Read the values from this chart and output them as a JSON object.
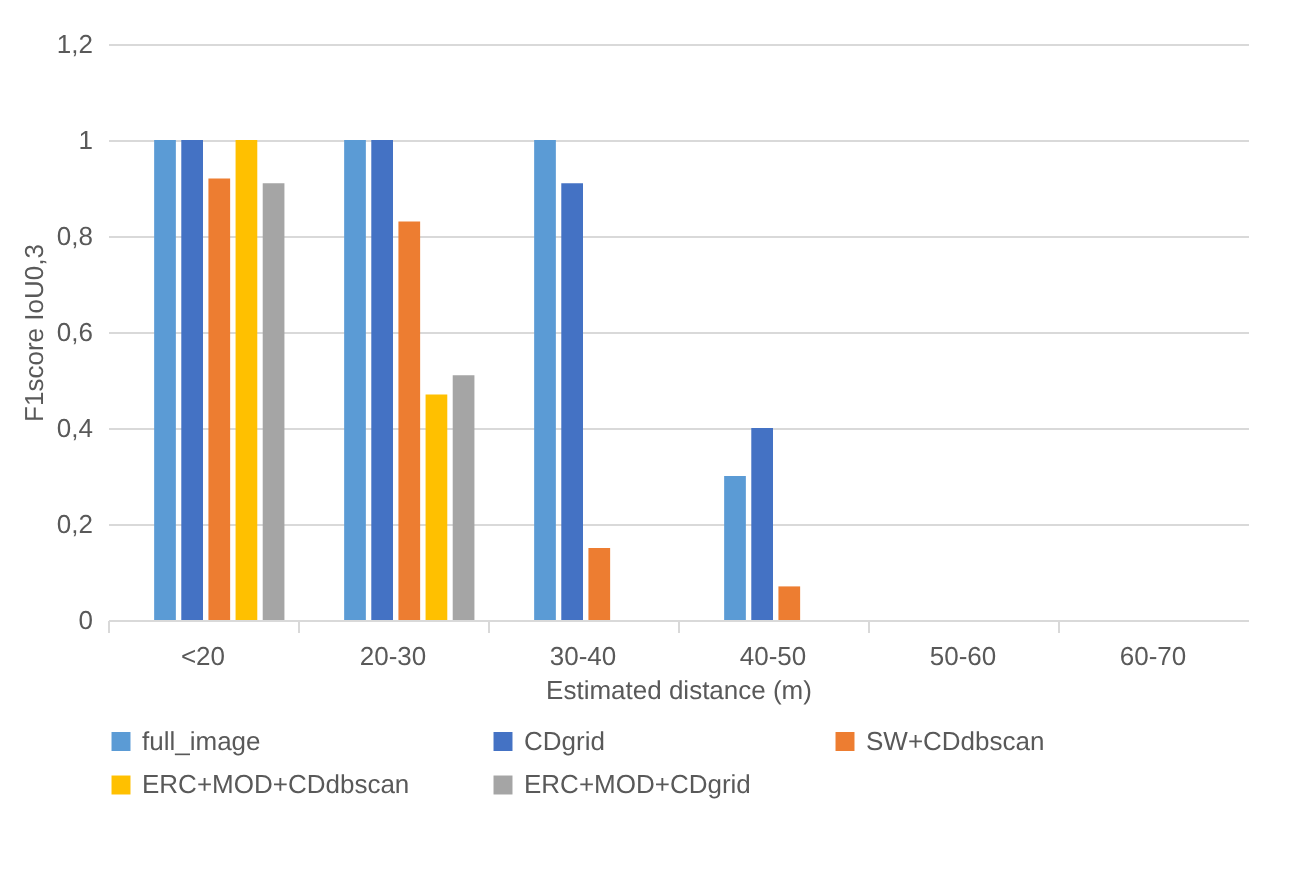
{
  "chart_data": {
    "type": "bar",
    "xlabel": "Estimated distance (m)",
    "ylabel": "F1score IoU0,3",
    "categories": [
      "<20",
      "20-30",
      "30-40",
      "40-50",
      "50-60",
      "60-70"
    ],
    "series": [
      {
        "name": "full_image",
        "color": "#5b9bd5",
        "values": [
          1,
          1,
          1,
          0.3,
          0,
          0
        ]
      },
      {
        "name": "CDgrid",
        "color": "#4472c4",
        "values": [
          1,
          1,
          0.91,
          0.4,
          0,
          0
        ]
      },
      {
        "name": "SW+CDdbscan",
        "color": "#ed7d31",
        "values": [
          0.92,
          0.83,
          0.15,
          0.07,
          0,
          0
        ]
      },
      {
        "name": "ERC+MOD+CDdbscan",
        "color": "#ffc000",
        "values": [
          1,
          0.47,
          0,
          0,
          0,
          0
        ]
      },
      {
        "name": "ERC+MOD+CDgrid",
        "color": "#a5a5a5",
        "values": [
          0.91,
          0.51,
          0,
          0,
          0,
          0
        ]
      }
    ],
    "ylim": [
      0,
      1.2
    ],
    "yticks": [
      0,
      {
        "value": 0.2,
        "label": "0,2"
      },
      {
        "value": 0.4,
        "label": "0,4"
      },
      {
        "value": 0.6,
        "label": "0,6"
      },
      {
        "value": 0.8,
        "label": "0,8"
      },
      1,
      {
        "value": 1.2,
        "label": "1,2"
      }
    ],
    "grid": "y",
    "legend": "bottom"
  }
}
